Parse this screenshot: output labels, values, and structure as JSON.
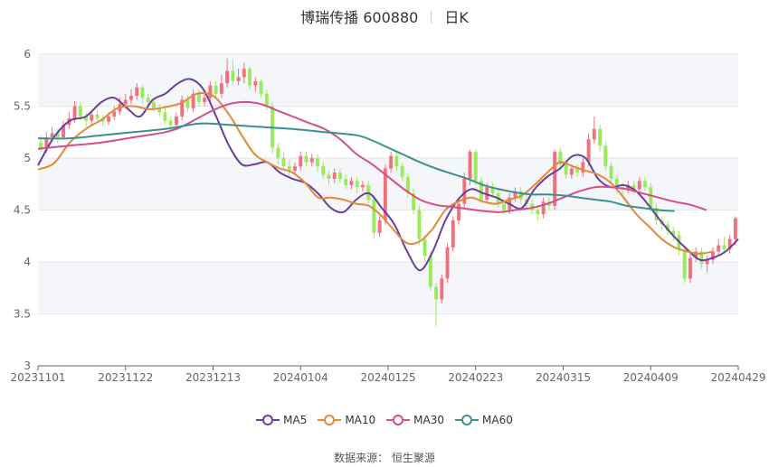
{
  "header": {
    "title": "博瑞传播 600880",
    "period": "日K"
  },
  "footer": {
    "source": "数据来源：   恒生聚源"
  },
  "colors": {
    "up": "#f0707c",
    "down": "#9aea5c",
    "MA5": "#6a3f9c",
    "MA10": "#e08a3a",
    "MA30": "#d44d8c",
    "MA60": "#3d8f8f",
    "band": "#f5f6fa",
    "grid": "#e6e6e6"
  },
  "chart_data": {
    "type": "candlestick",
    "title": "博瑞传播 600880",
    "ylim": [
      3,
      6
    ],
    "y_ticks": [
      "6",
      "5.5",
      "5",
      "4.5",
      "4",
      "3.5",
      "3"
    ],
    "x_labels": [
      "20231101",
      "20231122",
      "20231213",
      "20240104",
      "20240125",
      "20240223",
      "20240315",
      "20240409",
      "20240429"
    ],
    "legend": [
      "MA5",
      "MA10",
      "MA30",
      "MA60"
    ],
    "candles": [
      [
        5.15,
        5.08,
        5.22,
        5.05
      ],
      [
        5.1,
        5.2,
        5.25,
        5.05
      ],
      [
        5.2,
        5.24,
        5.3,
        5.16
      ],
      [
        5.24,
        5.2,
        5.28,
        5.14
      ],
      [
        5.2,
        5.32,
        5.36,
        5.18
      ],
      [
        5.32,
        5.38,
        5.44,
        5.28
      ],
      [
        5.38,
        5.5,
        5.55,
        5.34
      ],
      [
        5.5,
        5.4,
        5.54,
        5.36
      ],
      [
        5.4,
        5.36,
        5.44,
        5.3
      ],
      [
        5.36,
        5.42,
        5.46,
        5.32
      ],
      [
        5.42,
        5.38,
        5.46,
        5.34
      ],
      [
        5.38,
        5.35,
        5.42,
        5.31
      ],
      [
        5.35,
        5.4,
        5.44,
        5.32
      ],
      [
        5.4,
        5.45,
        5.5,
        5.37
      ],
      [
        5.45,
        5.52,
        5.58,
        5.42
      ],
      [
        5.52,
        5.56,
        5.62,
        5.48
      ],
      [
        5.56,
        5.6,
        5.66,
        5.52
      ],
      [
        5.6,
        5.68,
        5.72,
        5.56
      ],
      [
        5.68,
        5.58,
        5.7,
        5.52
      ],
      [
        5.58,
        5.54,
        5.62,
        5.48
      ],
      [
        5.54,
        5.48,
        5.58,
        5.44
      ],
      [
        5.48,
        5.44,
        5.52,
        5.4
      ],
      [
        5.44,
        5.36,
        5.48,
        5.32
      ],
      [
        5.36,
        5.32,
        5.4,
        5.26
      ],
      [
        5.32,
        5.4,
        5.44,
        5.28
      ],
      [
        5.4,
        5.56,
        5.6,
        5.36
      ],
      [
        5.56,
        5.48,
        5.6,
        5.44
      ],
      [
        5.48,
        5.62,
        5.66,
        5.44
      ],
      [
        5.62,
        5.54,
        5.66,
        5.5
      ],
      [
        5.54,
        5.58,
        5.62,
        5.5
      ],
      [
        5.58,
        5.7,
        5.74,
        5.54
      ],
      [
        5.7,
        5.62,
        5.74,
        5.58
      ],
      [
        5.62,
        5.72,
        5.8,
        5.58
      ],
      [
        5.72,
        5.84,
        5.96,
        5.68
      ],
      [
        5.84,
        5.74,
        5.94,
        5.7
      ],
      [
        5.74,
        5.78,
        5.86,
        5.7
      ],
      [
        5.78,
        5.86,
        5.92,
        5.72
      ],
      [
        5.86,
        5.7,
        5.88,
        5.66
      ],
      [
        5.7,
        5.74,
        5.78,
        5.64
      ],
      [
        5.74,
        5.62,
        5.76,
        5.58
      ],
      [
        5.62,
        5.5,
        5.66,
        5.46
      ],
      [
        5.5,
        5.1,
        5.54,
        5.04
      ],
      [
        5.1,
        5.0,
        5.14,
        4.94
      ],
      [
        5.0,
        4.92,
        5.06,
        4.88
      ],
      [
        4.92,
        4.88,
        4.98,
        4.82
      ],
      [
        4.88,
        4.92,
        4.96,
        4.84
      ],
      [
        4.92,
        5.02,
        5.06,
        4.88
      ],
      [
        5.02,
        4.96,
        5.06,
        4.92
      ],
      [
        4.96,
        5.0,
        5.04,
        4.92
      ],
      [
        5.0,
        4.92,
        5.04,
        4.86
      ],
      [
        4.92,
        4.84,
        4.96,
        4.8
      ],
      [
        4.84,
        4.8,
        4.88,
        4.74
      ],
      [
        4.8,
        4.86,
        4.9,
        4.76
      ],
      [
        4.86,
        4.8,
        4.9,
        4.76
      ],
      [
        4.8,
        4.74,
        4.84,
        4.7
      ],
      [
        4.74,
        4.78,
        4.82,
        4.7
      ],
      [
        4.78,
        4.72,
        4.82,
        4.66
      ],
      [
        4.72,
        4.74,
        4.78,
        4.68
      ],
      [
        4.74,
        4.6,
        4.78,
        4.56
      ],
      [
        4.6,
        4.28,
        4.64,
        4.22
      ],
      [
        4.28,
        4.4,
        4.44,
        4.24
      ],
      [
        4.4,
        4.9,
        4.94,
        4.36
      ],
      [
        4.9,
        5.02,
        5.06,
        4.86
      ],
      [
        5.02,
        4.92,
        5.06,
        4.88
      ],
      [
        4.92,
        4.82,
        4.96,
        4.78
      ],
      [
        4.82,
        4.66,
        4.86,
        4.62
      ],
      [
        4.66,
        4.5,
        4.7,
        4.46
      ],
      [
        4.5,
        4.22,
        4.54,
        4.16
      ],
      [
        4.22,
        4.06,
        4.26,
        4.0
      ],
      [
        4.06,
        3.76,
        4.1,
        3.72
      ],
      [
        3.76,
        3.64,
        3.8,
        3.38
      ],
      [
        3.64,
        3.84,
        3.88,
        3.6
      ],
      [
        3.84,
        4.14,
        4.18,
        3.8
      ],
      [
        4.14,
        4.4,
        4.44,
        4.1
      ],
      [
        4.4,
        4.56,
        4.62,
        4.36
      ],
      [
        4.56,
        4.8,
        4.86,
        4.52
      ],
      [
        4.8,
        5.06,
        5.08,
        4.74
      ],
      [
        5.06,
        4.78,
        5.08,
        4.74
      ],
      [
        4.78,
        4.6,
        4.82,
        4.56
      ],
      [
        4.6,
        4.72,
        4.76,
        4.56
      ],
      [
        4.72,
        4.66,
        4.76,
        4.62
      ],
      [
        4.66,
        4.56,
        4.7,
        4.52
      ],
      [
        4.56,
        4.5,
        4.6,
        4.46
      ],
      [
        4.5,
        4.62,
        4.66,
        4.46
      ],
      [
        4.62,
        4.68,
        4.72,
        4.58
      ],
      [
        4.68,
        4.6,
        4.72,
        4.56
      ],
      [
        4.6,
        4.56,
        4.64,
        4.52
      ],
      [
        4.56,
        4.5,
        4.6,
        4.46
      ],
      [
        4.5,
        4.46,
        4.54,
        4.4
      ],
      [
        4.46,
        4.58,
        4.62,
        4.42
      ],
      [
        4.58,
        4.54,
        4.62,
        4.5
      ],
      [
        4.54,
        5.06,
        5.08,
        4.5
      ],
      [
        5.06,
        4.94,
        5.1,
        4.88
      ],
      [
        4.94,
        4.84,
        4.98,
        4.8
      ],
      [
        4.84,
        4.9,
        4.94,
        4.8
      ],
      [
        4.9,
        4.86,
        4.94,
        4.82
      ],
      [
        4.86,
        4.96,
        5.0,
        4.82
      ],
      [
        4.96,
        5.18,
        5.24,
        4.92
      ],
      [
        5.18,
        5.28,
        5.4,
        5.14
      ],
      [
        5.28,
        5.12,
        5.32,
        5.06
      ],
      [
        5.12,
        4.92,
        5.16,
        4.88
      ],
      [
        4.92,
        4.8,
        4.96,
        4.76
      ],
      [
        4.8,
        4.72,
        4.84,
        4.66
      ],
      [
        4.72,
        4.7,
        4.76,
        4.64
      ],
      [
        4.7,
        4.74,
        4.78,
        4.66
      ],
      [
        4.74,
        4.7,
        4.78,
        4.66
      ],
      [
        4.7,
        4.78,
        4.82,
        4.66
      ],
      [
        4.78,
        4.72,
        4.82,
        4.68
      ],
      [
        4.72,
        4.52,
        4.76,
        4.48
      ],
      [
        4.52,
        4.4,
        4.56,
        4.36
      ],
      [
        4.4,
        4.36,
        4.44,
        4.3
      ],
      [
        4.36,
        4.3,
        4.4,
        4.26
      ],
      [
        4.3,
        4.26,
        4.34,
        4.2
      ],
      [
        4.26,
        4.12,
        4.3,
        4.06
      ],
      [
        4.12,
        3.84,
        4.16,
        3.8
      ],
      [
        3.84,
        4.04,
        4.08,
        3.8
      ],
      [
        4.04,
        4.1,
        4.14,
        4.0
      ],
      [
        4.1,
        3.98,
        4.14,
        3.94
      ],
      [
        3.98,
        4.02,
        4.06,
        3.9
      ],
      [
        4.02,
        4.1,
        4.14,
        3.98
      ],
      [
        4.1,
        4.16,
        4.22,
        4.06
      ],
      [
        4.16,
        4.12,
        4.24,
        4.08
      ],
      [
        4.12,
        4.22,
        4.26,
        4.08
      ],
      [
        4.22,
        4.42,
        4.44,
        4.16
      ]
    ],
    "ma": {
      "MA5": [
        [
          0,
          4.93
        ],
        [
          5,
          5.2
        ],
        [
          10,
          5.36
        ],
        [
          15,
          5.4
        ],
        [
          20,
          5.54
        ],
        [
          24,
          5.58
        ],
        [
          28,
          5.48
        ],
        [
          32,
          5.4
        ],
        [
          36,
          5.56
        ],
        [
          40,
          5.62
        ],
        [
          44,
          5.72
        ],
        [
          48,
          5.76
        ],
        [
          52,
          5.66
        ],
        [
          56,
          5.4
        ],
        [
          60,
          5.12
        ],
        [
          64,
          4.94
        ],
        [
          68,
          4.94
        ],
        [
          72,
          4.96
        ],
        [
          76,
          4.86
        ],
        [
          80,
          4.8
        ],
        [
          84,
          4.76
        ],
        [
          88,
          4.66
        ],
        [
          92,
          4.52
        ],
        [
          96,
          4.48
        ],
        [
          100,
          4.6
        ],
        [
          104,
          4.66
        ],
        [
          108,
          4.52
        ],
        [
          112,
          4.36
        ],
        [
          116,
          4.1
        ],
        [
          120,
          3.92
        ],
        [
          124,
          4.1
        ],
        [
          128,
          4.4
        ],
        [
          132,
          4.6
        ],
        [
          136,
          4.7
        ],
        [
          140,
          4.66
        ],
        [
          144,
          4.62
        ],
        [
          148,
          4.56
        ],
        [
          152,
          4.52
        ],
        [
          156,
          4.7
        ],
        [
          160,
          4.82
        ],
        [
          164,
          4.9
        ],
        [
          168,
          5.02
        ],
        [
          172,
          5.0
        ],
        [
          176,
          4.8
        ],
        [
          180,
          4.72
        ],
        [
          184,
          4.74
        ],
        [
          188,
          4.68
        ],
        [
          192,
          4.54
        ],
        [
          196,
          4.38
        ],
        [
          200,
          4.24
        ],
        [
          204,
          4.12
        ],
        [
          208,
          4.02
        ],
        [
          212,
          4.04
        ],
        [
          216,
          4.1
        ],
        [
          220,
          4.22
        ]
      ],
      "MA10": [
        [
          0,
          4.89
        ],
        [
          5,
          4.95
        ],
        [
          10,
          5.15
        ],
        [
          15,
          5.28
        ],
        [
          20,
          5.37
        ],
        [
          25,
          5.48
        ],
        [
          30,
          5.5
        ],
        [
          35,
          5.47
        ],
        [
          40,
          5.49
        ],
        [
          45,
          5.53
        ],
        [
          50,
          5.62
        ],
        [
          55,
          5.6
        ],
        [
          60,
          5.42
        ],
        [
          64,
          5.22
        ],
        [
          68,
          5.04
        ],
        [
          72,
          4.96
        ],
        [
          76,
          4.9
        ],
        [
          80,
          4.86
        ],
        [
          84,
          4.76
        ],
        [
          88,
          4.62
        ],
        [
          92,
          4.62
        ],
        [
          96,
          4.6
        ],
        [
          100,
          4.56
        ],
        [
          104,
          4.54
        ],
        [
          108,
          4.44
        ],
        [
          112,
          4.3
        ],
        [
          116,
          4.18
        ],
        [
          120,
          4.2
        ],
        [
          124,
          4.32
        ],
        [
          128,
          4.5
        ],
        [
          132,
          4.58
        ],
        [
          136,
          4.62
        ],
        [
          140,
          4.58
        ],
        [
          144,
          4.56
        ],
        [
          148,
          4.6
        ],
        [
          152,
          4.64
        ],
        [
          156,
          4.74
        ],
        [
          160,
          4.86
        ],
        [
          164,
          4.96
        ],
        [
          168,
          4.92
        ],
        [
          172,
          4.88
        ],
        [
          176,
          4.84
        ],
        [
          180,
          4.76
        ],
        [
          184,
          4.62
        ],
        [
          188,
          4.46
        ],
        [
          192,
          4.34
        ],
        [
          196,
          4.22
        ],
        [
          200,
          4.14
        ],
        [
          204,
          4.1
        ],
        [
          208,
          4.08
        ],
        [
          212,
          4.1
        ]
      ],
      "MA30": [
        [
          0,
          5.09
        ],
        [
          10,
          5.12
        ],
        [
          20,
          5.15
        ],
        [
          30,
          5.2
        ],
        [
          40,
          5.25
        ],
        [
          45,
          5.3
        ],
        [
          50,
          5.38
        ],
        [
          55,
          5.46
        ],
        [
          60,
          5.52
        ],
        [
          65,
          5.54
        ],
        [
          70,
          5.52
        ],
        [
          75,
          5.46
        ],
        [
          80,
          5.4
        ],
        [
          85,
          5.34
        ],
        [
          90,
          5.28
        ],
        [
          95,
          5.18
        ],
        [
          100,
          5.04
        ],
        [
          105,
          4.94
        ],
        [
          110,
          4.82
        ],
        [
          115,
          4.7
        ],
        [
          120,
          4.6
        ],
        [
          125,
          4.55
        ],
        [
          130,
          4.53
        ],
        [
          135,
          4.51
        ],
        [
          140,
          4.49
        ],
        [
          145,
          4.48
        ],
        [
          150,
          4.5
        ],
        [
          155,
          4.52
        ],
        [
          160,
          4.56
        ],
        [
          165,
          4.62
        ],
        [
          170,
          4.68
        ],
        [
          175,
          4.72
        ],
        [
          180,
          4.72
        ],
        [
          185,
          4.7
        ],
        [
          190,
          4.66
        ],
        [
          195,
          4.62
        ],
        [
          200,
          4.58
        ],
        [
          205,
          4.55
        ],
        [
          210,
          4.5
        ]
      ],
      "MA60": [
        [
          0,
          5.19
        ],
        [
          10,
          5.19
        ],
        [
          20,
          5.22
        ],
        [
          30,
          5.25
        ],
        [
          40,
          5.28
        ],
        [
          50,
          5.33
        ],
        [
          55,
          5.33
        ],
        [
          60,
          5.32
        ],
        [
          70,
          5.3
        ],
        [
          80,
          5.28
        ],
        [
          90,
          5.25
        ],
        [
          100,
          5.22
        ],
        [
          105,
          5.17
        ],
        [
          110,
          5.1
        ],
        [
          115,
          5.03
        ],
        [
          120,
          4.96
        ],
        [
          125,
          4.9
        ],
        [
          130,
          4.85
        ],
        [
          135,
          4.8
        ],
        [
          140,
          4.74
        ],
        [
          145,
          4.7
        ],
        [
          150,
          4.67
        ],
        [
          155,
          4.65
        ],
        [
          160,
          4.65
        ],
        [
          165,
          4.64
        ],
        [
          170,
          4.62
        ],
        [
          175,
          4.6
        ],
        [
          180,
          4.58
        ],
        [
          185,
          4.54
        ],
        [
          190,
          4.52
        ],
        [
          195,
          4.5
        ],
        [
          200,
          4.49
        ]
      ]
    }
  }
}
